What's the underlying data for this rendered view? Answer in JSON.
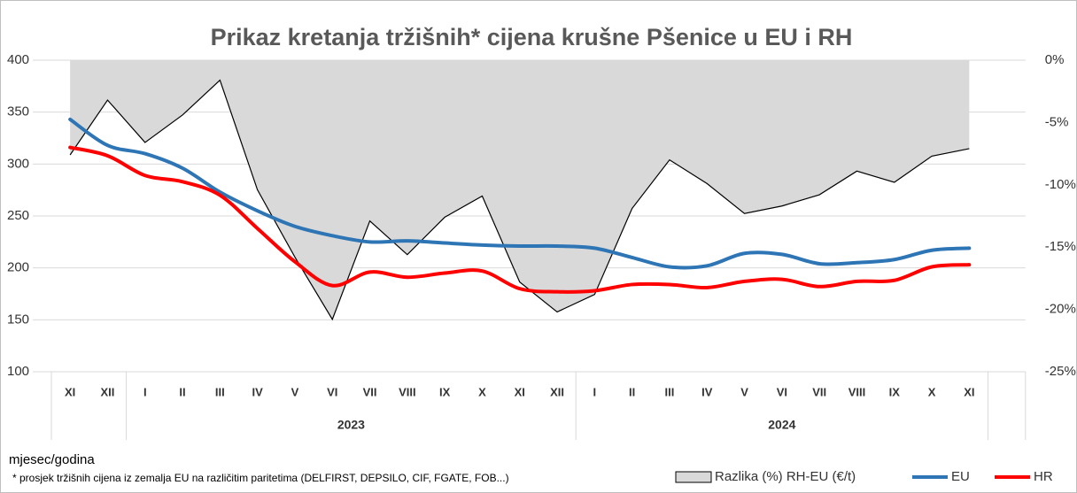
{
  "chart_data": {
    "type": "line",
    "title": "Prikaz kretanja tržišnih* cijena krušne Pšenice u EU i RH",
    "x_axis_label": "mjesec/godina",
    "footnote": "* prosjek tržišnih cijena iz zemalja EU na različitim paritetima (DELFIRST, DEPSILO, CIF, FGATE, FOB...)",
    "categories": [
      "XI",
      "XII",
      "I",
      "II",
      "III",
      "IV",
      "V",
      "VI",
      "VII",
      "VIII",
      "IX",
      "X",
      "XI",
      "XII",
      "I",
      "II",
      "III",
      "IV",
      "V",
      "VI",
      "VII",
      "VIII",
      "IX",
      "X",
      "XI"
    ],
    "groups": [
      {
        "label": null,
        "count": 2
      },
      {
        "label": "2023",
        "count": 12
      },
      {
        "label": "2024",
        "count": 11
      }
    ],
    "ylim": [
      100,
      400
    ],
    "yticks": [
      100,
      150,
      200,
      250,
      300,
      350,
      400
    ],
    "y2lim": [
      -25,
      0
    ],
    "y2ticks": [
      {
        "value": 0,
        "label": "0%"
      },
      {
        "value": -5,
        "label": "-5%"
      },
      {
        "value": -10,
        "label": "-10%"
      },
      {
        "value": -15,
        "label": "-15%"
      },
      {
        "value": -20,
        "label": "-20%"
      },
      {
        "value": -25,
        "label": "-25%"
      }
    ],
    "grid": true,
    "series": [
      {
        "name": "Razlika (%) RH-EU  (€/t)",
        "type": "area",
        "axis": "y2",
        "color": "#d9d9d9",
        "values": [
          -7.6,
          -3.2,
          -6.6,
          -4.4,
          -1.6,
          -10.4,
          -15.8,
          -20.8,
          -12.9,
          -15.6,
          -12.6,
          -10.9,
          -17.8,
          -20.2,
          -18.8,
          -11.9,
          -8.0,
          -9.9,
          -12.3,
          -11.7,
          -10.8,
          -8.9,
          -9.8,
          -7.7,
          -7.1
        ]
      },
      {
        "name": "EU",
        "type": "line",
        "color": "#2e75b6",
        "values": [
          343,
          318,
          310,
          296,
          273,
          255,
          240,
          231,
          225,
          226,
          224,
          222,
          221,
          221,
          219,
          210,
          201,
          202,
          214,
          213,
          204,
          205,
          208,
          217,
          219
        ]
      },
      {
        "name": "HR",
        "type": "line",
        "color": "#ff0000",
        "values": [
          316,
          308,
          289,
          283,
          270,
          238,
          206,
          183,
          196,
          191,
          195,
          197,
          180,
          177,
          178,
          184,
          184,
          181,
          187,
          189,
          182,
          187,
          188,
          201,
          203
        ]
      }
    ]
  }
}
